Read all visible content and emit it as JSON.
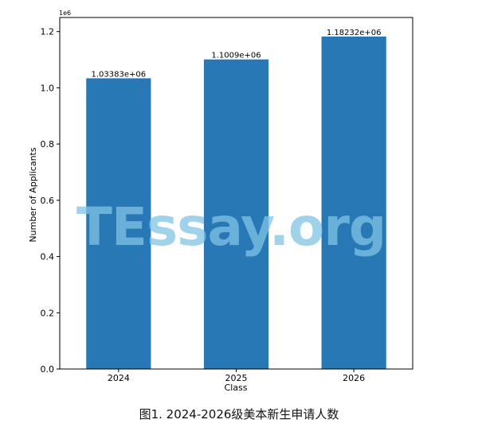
{
  "chart_data": {
    "type": "bar",
    "categories": [
      "2024",
      "2025",
      "2026"
    ],
    "values": [
      1033830,
      1100900,
      1182320
    ],
    "data_labels": [
      "1.03383e+06",
      "1.1009e+06",
      "1.18232e+06"
    ],
    "xlabel": "Class",
    "ylabel": "Number of Applicants",
    "ylim": [
      0,
      1.25
    ],
    "yticks": [
      "0.0",
      "0.2",
      "0.4",
      "0.6",
      "0.8",
      "1.0",
      "1.2"
    ],
    "y_multiplier_label": "1e6",
    "bar_color": "#2878b5",
    "grid": false
  },
  "watermark": "TEssay.org",
  "caption": "图1. 2024-2026级美本新生申请人数"
}
